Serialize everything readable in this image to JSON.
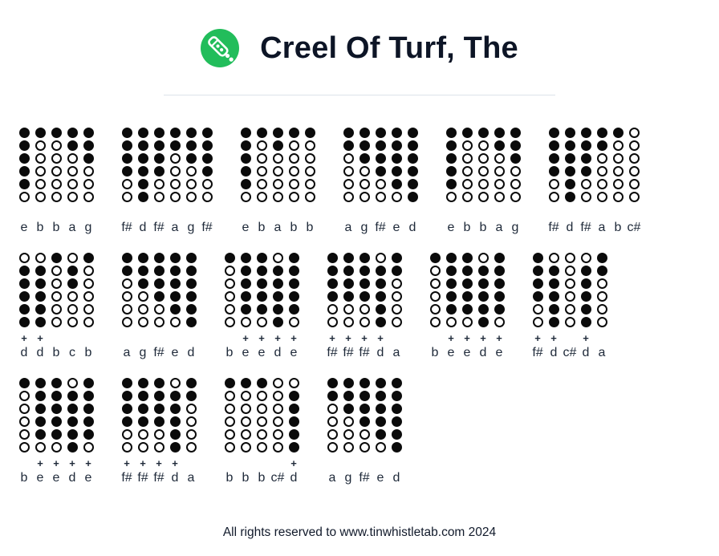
{
  "page": {
    "title": "Creel Of Turf, The",
    "footer": "All rights reserved to www.tinwhistletab.com 2024"
  },
  "logo": {
    "icon": "tin-whistle-icon",
    "bg_color": "#22BD5B",
    "glyph_color": "#ffffff"
  },
  "symbols": {
    "plus": "+"
  },
  "colors": {
    "dot": "#0b0b0b",
    "note_text": "#1e2939",
    "title_text": "#0d1526",
    "divider": "#dde3ea"
  },
  "tab_rows": [
    [
      {
        "notes": [
          {
            "label": "e",
            "plus": false,
            "holes": [
              1,
              1,
              1,
              1,
              1,
              0
            ]
          },
          {
            "label": "b",
            "plus": false,
            "holes": [
              1,
              0,
              0,
              0,
              0,
              0
            ]
          },
          {
            "label": "b",
            "plus": false,
            "holes": [
              1,
              0,
              0,
              0,
              0,
              0
            ]
          },
          {
            "label": "a",
            "plus": false,
            "holes": [
              1,
              1,
              0,
              0,
              0,
              0
            ]
          },
          {
            "label": "g",
            "plus": false,
            "holes": [
              1,
              1,
              1,
              0,
              0,
              0
            ]
          }
        ]
      },
      {
        "notes": [
          {
            "label": "f#",
            "plus": false,
            "holes": [
              1,
              1,
              1,
              1,
              0,
              0
            ]
          },
          {
            "label": "d",
            "plus": false,
            "holes": [
              1,
              1,
              1,
              1,
              1,
              1
            ]
          },
          {
            "label": "f#",
            "plus": false,
            "holes": [
              1,
              1,
              1,
              1,
              0,
              0
            ]
          },
          {
            "label": "a",
            "plus": false,
            "holes": [
              1,
              1,
              0,
              0,
              0,
              0
            ]
          },
          {
            "label": "g",
            "plus": false,
            "holes": [
              1,
              1,
              1,
              0,
              0,
              0
            ]
          },
          {
            "label": "f#",
            "plus": false,
            "holes": [
              1,
              1,
              1,
              1,
              0,
              0
            ]
          }
        ]
      },
      {
        "notes": [
          {
            "label": "e",
            "plus": false,
            "holes": [
              1,
              1,
              1,
              1,
              1,
              0
            ]
          },
          {
            "label": "b",
            "plus": false,
            "holes": [
              1,
              0,
              0,
              0,
              0,
              0
            ]
          },
          {
            "label": "a",
            "plus": false,
            "holes": [
              1,
              1,
              0,
              0,
              0,
              0
            ]
          },
          {
            "label": "b",
            "plus": false,
            "holes": [
              1,
              0,
              0,
              0,
              0,
              0
            ]
          },
          {
            "label": "b",
            "plus": false,
            "holes": [
              1,
              0,
              0,
              0,
              0,
              0
            ]
          }
        ]
      },
      {
        "notes": [
          {
            "label": "a",
            "plus": false,
            "holes": [
              1,
              1,
              0,
              0,
              0,
              0
            ]
          },
          {
            "label": "g",
            "plus": false,
            "holes": [
              1,
              1,
              1,
              0,
              0,
              0
            ]
          },
          {
            "label": "f#",
            "plus": false,
            "holes": [
              1,
              1,
              1,
              1,
              0,
              0
            ]
          },
          {
            "label": "e",
            "plus": false,
            "holes": [
              1,
              1,
              1,
              1,
              1,
              0
            ]
          },
          {
            "label": "d",
            "plus": false,
            "holes": [
              1,
              1,
              1,
              1,
              1,
              1
            ]
          }
        ]
      },
      {
        "notes": [
          {
            "label": "e",
            "plus": false,
            "holes": [
              1,
              1,
              1,
              1,
              1,
              0
            ]
          },
          {
            "label": "b",
            "plus": false,
            "holes": [
              1,
              0,
              0,
              0,
              0,
              0
            ]
          },
          {
            "label": "b",
            "plus": false,
            "holes": [
              1,
              0,
              0,
              0,
              0,
              0
            ]
          },
          {
            "label": "a",
            "plus": false,
            "holes": [
              1,
              1,
              0,
              0,
              0,
              0
            ]
          },
          {
            "label": "g",
            "plus": false,
            "holes": [
              1,
              1,
              1,
              0,
              0,
              0
            ]
          }
        ]
      },
      {
        "notes": [
          {
            "label": "f#",
            "plus": false,
            "holes": [
              1,
              1,
              1,
              1,
              0,
              0
            ]
          },
          {
            "label": "d",
            "plus": false,
            "holes": [
              1,
              1,
              1,
              1,
              1,
              1
            ]
          },
          {
            "label": "f#",
            "plus": false,
            "holes": [
              1,
              1,
              1,
              1,
              0,
              0
            ]
          },
          {
            "label": "a",
            "plus": false,
            "holes": [
              1,
              1,
              0,
              0,
              0,
              0
            ]
          },
          {
            "label": "b",
            "plus": false,
            "holes": [
              1,
              0,
              0,
              0,
              0,
              0
            ]
          },
          {
            "label": "c#",
            "plus": false,
            "holes": [
              0,
              0,
              0,
              0,
              0,
              0
            ]
          }
        ]
      }
    ],
    [
      {
        "notes": [
          {
            "label": "d",
            "plus": true,
            "holes": [
              0,
              1,
              1,
              1,
              1,
              1
            ]
          },
          {
            "label": "d",
            "plus": true,
            "holes": [
              0,
              1,
              1,
              1,
              1,
              1
            ]
          },
          {
            "label": "b",
            "plus": false,
            "holes": [
              1,
              0,
              0,
              0,
              0,
              0
            ]
          },
          {
            "label": "c",
            "plus": false,
            "holes": [
              0,
              1,
              1,
              0,
              0,
              0
            ]
          },
          {
            "label": "b",
            "plus": false,
            "holes": [
              1,
              0,
              0,
              0,
              0,
              0
            ]
          }
        ]
      },
      {
        "notes": [
          {
            "label": "a",
            "plus": false,
            "holes": [
              1,
              1,
              0,
              0,
              0,
              0
            ]
          },
          {
            "label": "g",
            "plus": false,
            "holes": [
              1,
              1,
              1,
              0,
              0,
              0
            ]
          },
          {
            "label": "f#",
            "plus": false,
            "holes": [
              1,
              1,
              1,
              1,
              0,
              0
            ]
          },
          {
            "label": "e",
            "plus": false,
            "holes": [
              1,
              1,
              1,
              1,
              1,
              0
            ]
          },
          {
            "label": "d",
            "plus": false,
            "holes": [
              1,
              1,
              1,
              1,
              1,
              1
            ]
          }
        ]
      },
      {
        "notes": [
          {
            "label": "b",
            "plus": false,
            "holes": [
              1,
              0,
              0,
              0,
              0,
              0
            ]
          },
          {
            "label": "e",
            "plus": true,
            "holes": [
              1,
              1,
              1,
              1,
              1,
              0
            ]
          },
          {
            "label": "e",
            "plus": true,
            "holes": [
              1,
              1,
              1,
              1,
              1,
              0
            ]
          },
          {
            "label": "d",
            "plus": true,
            "holes": [
              0,
              1,
              1,
              1,
              1,
              1
            ]
          },
          {
            "label": "e",
            "plus": true,
            "holes": [
              1,
              1,
              1,
              1,
              1,
              0
            ]
          }
        ]
      },
      {
        "notes": [
          {
            "label": "f#",
            "plus": true,
            "holes": [
              1,
              1,
              1,
              1,
              0,
              0
            ]
          },
          {
            "label": "f#",
            "plus": true,
            "holes": [
              1,
              1,
              1,
              1,
              0,
              0
            ]
          },
          {
            "label": "f#",
            "plus": true,
            "holes": [
              1,
              1,
              1,
              1,
              0,
              0
            ]
          },
          {
            "label": "d",
            "plus": true,
            "holes": [
              0,
              1,
              1,
              1,
              1,
              1
            ]
          },
          {
            "label": "a",
            "plus": false,
            "holes": [
              1,
              1,
              0,
              0,
              0,
              0
            ]
          }
        ]
      },
      {
        "notes": [
          {
            "label": "b",
            "plus": false,
            "holes": [
              1,
              0,
              0,
              0,
              0,
              0
            ]
          },
          {
            "label": "e",
            "plus": true,
            "holes": [
              1,
              1,
              1,
              1,
              1,
              0
            ]
          },
          {
            "label": "e",
            "plus": true,
            "holes": [
              1,
              1,
              1,
              1,
              1,
              0
            ]
          },
          {
            "label": "d",
            "plus": true,
            "holes": [
              0,
              1,
              1,
              1,
              1,
              1
            ]
          },
          {
            "label": "e",
            "plus": true,
            "holes": [
              1,
              1,
              1,
              1,
              1,
              0
            ]
          }
        ]
      },
      {
        "notes": [
          {
            "label": "f#",
            "plus": true,
            "holes": [
              1,
              1,
              1,
              1,
              0,
              0
            ]
          },
          {
            "label": "d",
            "plus": true,
            "holes": [
              0,
              1,
              1,
              1,
              1,
              1
            ]
          },
          {
            "label": "c#",
            "plus": false,
            "holes": [
              0,
              0,
              0,
              0,
              0,
              0
            ]
          },
          {
            "label": "d",
            "plus": true,
            "holes": [
              0,
              1,
              1,
              1,
              1,
              1
            ]
          },
          {
            "label": "a",
            "plus": false,
            "holes": [
              1,
              1,
              0,
              0,
              0,
              0
            ]
          }
        ]
      }
    ],
    [
      {
        "notes": [
          {
            "label": "b",
            "plus": false,
            "holes": [
              1,
              0,
              0,
              0,
              0,
              0
            ]
          },
          {
            "label": "e",
            "plus": true,
            "holes": [
              1,
              1,
              1,
              1,
              1,
              0
            ]
          },
          {
            "label": "e",
            "plus": true,
            "holes": [
              1,
              1,
              1,
              1,
              1,
              0
            ]
          },
          {
            "label": "d",
            "plus": true,
            "holes": [
              0,
              1,
              1,
              1,
              1,
              1
            ]
          },
          {
            "label": "e",
            "plus": true,
            "holes": [
              1,
              1,
              1,
              1,
              1,
              0
            ]
          }
        ]
      },
      {
        "notes": [
          {
            "label": "f#",
            "plus": true,
            "holes": [
              1,
              1,
              1,
              1,
              0,
              0
            ]
          },
          {
            "label": "f#",
            "plus": true,
            "holes": [
              1,
              1,
              1,
              1,
              0,
              0
            ]
          },
          {
            "label": "f#",
            "plus": true,
            "holes": [
              1,
              1,
              1,
              1,
              0,
              0
            ]
          },
          {
            "label": "d",
            "plus": true,
            "holes": [
              0,
              1,
              1,
              1,
              1,
              1
            ]
          },
          {
            "label": "a",
            "plus": false,
            "holes": [
              1,
              1,
              0,
              0,
              0,
              0
            ]
          }
        ]
      },
      {
        "notes": [
          {
            "label": "b",
            "plus": false,
            "holes": [
              1,
              0,
              0,
              0,
              0,
              0
            ]
          },
          {
            "label": "b",
            "plus": false,
            "holes": [
              1,
              0,
              0,
              0,
              0,
              0
            ]
          },
          {
            "label": "b",
            "plus": false,
            "holes": [
              1,
              0,
              0,
              0,
              0,
              0
            ]
          },
          {
            "label": "c#",
            "plus": false,
            "holes": [
              0,
              0,
              0,
              0,
              0,
              0
            ]
          },
          {
            "label": "d",
            "plus": true,
            "holes": [
              0,
              1,
              1,
              1,
              1,
              1
            ]
          }
        ]
      },
      {
        "notes": [
          {
            "label": "a",
            "plus": false,
            "holes": [
              1,
              1,
              0,
              0,
              0,
              0
            ]
          },
          {
            "label": "g",
            "plus": false,
            "holes": [
              1,
              1,
              1,
              0,
              0,
              0
            ]
          },
          {
            "label": "f#",
            "plus": false,
            "holes": [
              1,
              1,
              1,
              1,
              0,
              0
            ]
          },
          {
            "label": "e",
            "plus": false,
            "holes": [
              1,
              1,
              1,
              1,
              1,
              0
            ]
          },
          {
            "label": "d",
            "plus": false,
            "holes": [
              1,
              1,
              1,
              1,
              1,
              1
            ]
          }
        ]
      }
    ]
  ]
}
